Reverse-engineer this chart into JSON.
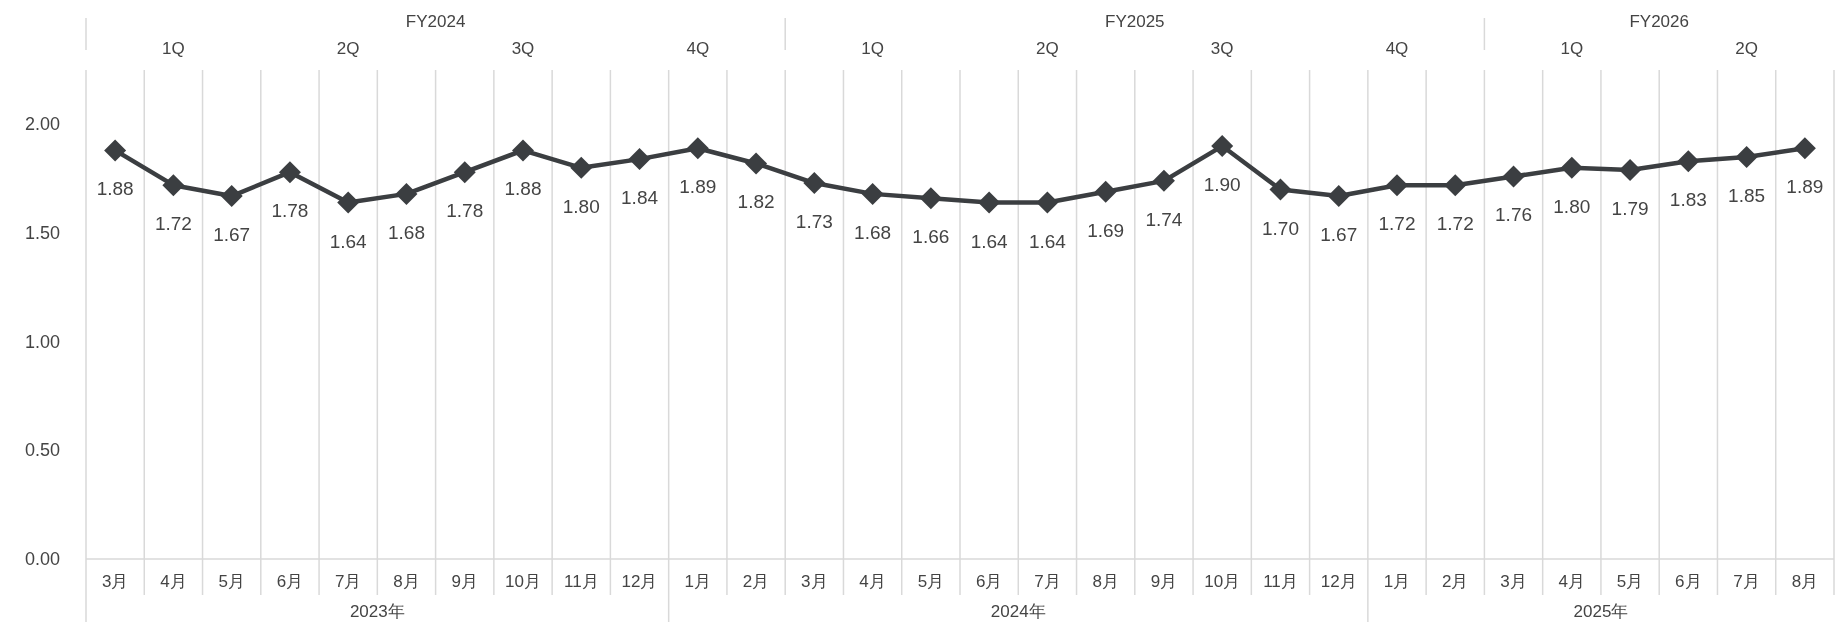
{
  "chart_data": {
    "type": "line",
    "categories": [
      "3月",
      "4月",
      "5月",
      "6月",
      "7月",
      "8月",
      "9月",
      "10月",
      "11月",
      "12月",
      "1月",
      "2月",
      "3月",
      "4月",
      "5月",
      "6月",
      "7月",
      "8月",
      "9月",
      "10月",
      "11月",
      "12月",
      "1月",
      "2月",
      "3月",
      "4月",
      "5月",
      "6月",
      "7月",
      "8月"
    ],
    "series": [
      {
        "color": "#3b3e41",
        "values": [
          1.88,
          1.72,
          1.67,
          1.78,
          1.64,
          1.68,
          1.78,
          1.88,
          1.8,
          1.84,
          1.89,
          1.82,
          1.73,
          1.68,
          1.66,
          1.64,
          1.64,
          1.69,
          1.74,
          1.9,
          1.7,
          1.67,
          1.72,
          1.72,
          1.76,
          1.8,
          1.79,
          1.83,
          1.85,
          1.89
        ],
        "value_labels": [
          "1.88",
          "1.72",
          "1.67",
          "1.78",
          "1.64",
          "1.68",
          "1.78",
          "1.88",
          "1.80",
          "1.84",
          "1.89",
          "1.82",
          "1.73",
          "1.68",
          "1.66",
          "1.64",
          "1.64",
          "1.69",
          "1.74",
          "1.90",
          "1.70",
          "1.67",
          "1.72",
          "1.72",
          "1.76",
          "1.80",
          "1.79",
          "1.83",
          "1.85",
          "1.89"
        ]
      }
    ],
    "ylim": [
      0,
      2.25
    ],
    "yticks": [
      {
        "value": 0,
        "label": "0.00"
      },
      {
        "value": 0.5,
        "label": "0.50"
      },
      {
        "value": 1,
        "label": "1.00"
      },
      {
        "value": 1.5,
        "label": "1.50"
      },
      {
        "value": 2,
        "label": "2.00"
      }
    ],
    "grid": "x",
    "marker": "diamond",
    "line_style": "solid",
    "annotations": [
      "FY2024",
      "FY2025",
      "FY2026",
      "1Q",
      "2Q",
      "3Q",
      "4Q",
      "1Q",
      "2Q",
      "3Q",
      "4Q",
      "1Q",
      "2Q",
      "2023年",
      "2024年",
      "2025年"
    ]
  }
}
